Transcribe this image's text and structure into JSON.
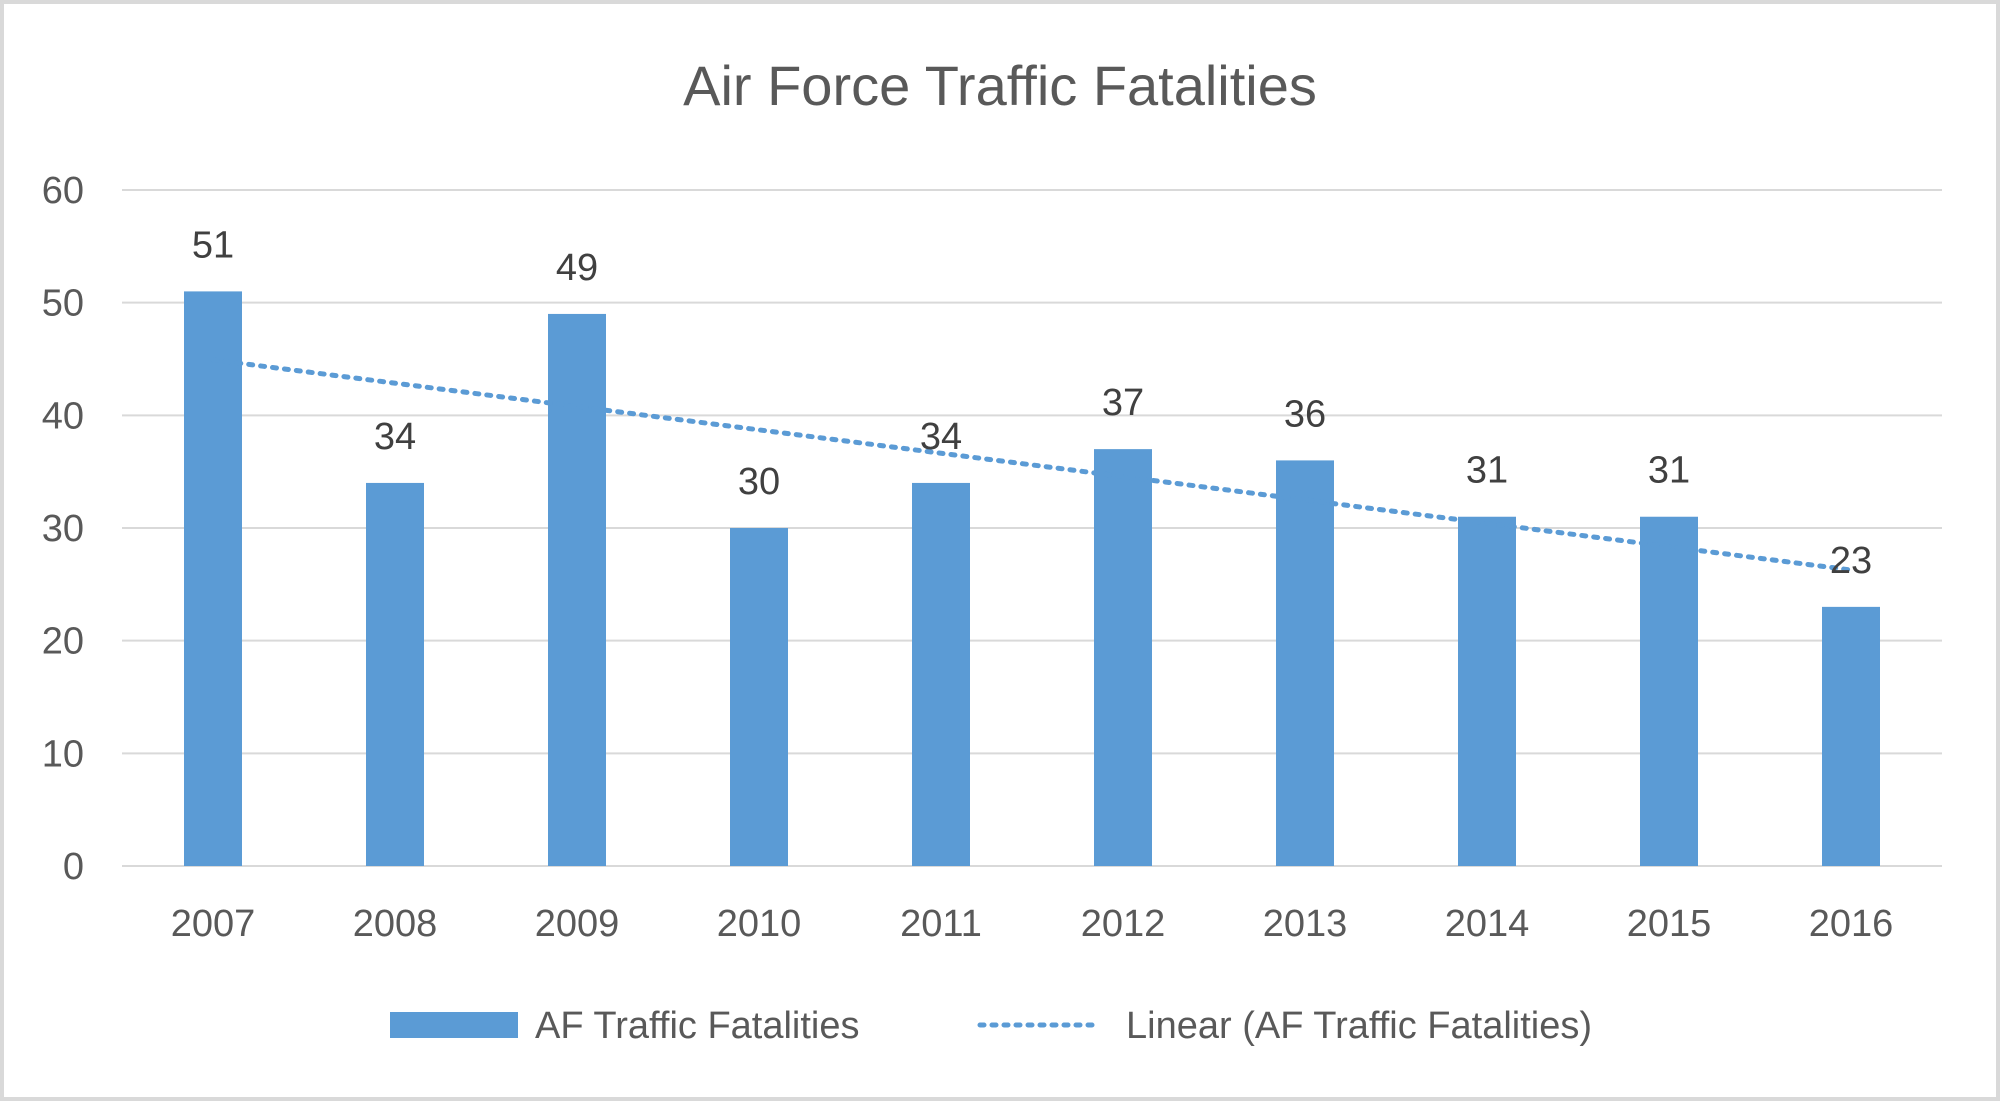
{
  "chart_data": {
    "type": "bar",
    "title": "Air Force Traffic Fatalities",
    "categories": [
      "2007",
      "2008",
      "2009",
      "2010",
      "2011",
      "2012",
      "2013",
      "2014",
      "2015",
      "2016"
    ],
    "series": [
      {
        "name": "AF Traffic Fatalities",
        "values": [
          51,
          34,
          49,
          30,
          34,
          37,
          36,
          31,
          31,
          23
        ],
        "color": "#5b9bd5"
      }
    ],
    "trendline": {
      "name": "Linear (AF Traffic Fatalities)",
      "type": "linear",
      "style": "dotted",
      "color": "#5b9bd5"
    },
    "yticks": [
      "0",
      "10",
      "20",
      "30",
      "40",
      "50",
      "60"
    ],
    "ylim": [
      0,
      60
    ],
    "xlabel": "",
    "ylabel": "",
    "grid": true,
    "legend": "bottom",
    "colors": {
      "gridline": "#d9d9d9",
      "text": "#595959",
      "border": "#d9d9d9"
    }
  }
}
